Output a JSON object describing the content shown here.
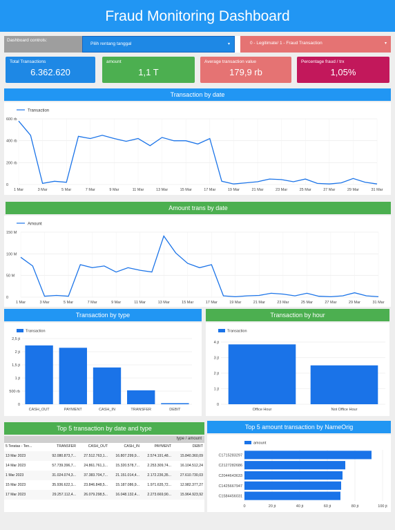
{
  "header": {
    "title": "Fraud Monitoring Dashboard"
  },
  "controls": {
    "label": "Dashboard controls:",
    "date_picker": "Pilih rentang tanggal",
    "fraud_filter": "0 - Legitimate/ 1 - Fraud Transaction",
    "dropdown_arrow": "▾"
  },
  "kpis": [
    {
      "label": "Total Transactions",
      "value": "6.362.620",
      "color": "#1e88e5"
    },
    {
      "label": "amount",
      "value": "1,1 T",
      "color": "#4caf50"
    },
    {
      "label": "Average transaction value",
      "value": "179,9 rb",
      "color": "#e57373"
    },
    {
      "label": "Percentage fraud / trx",
      "value": "1,05%",
      "color": "#c2185b"
    }
  ],
  "sections": {
    "trans_by_date": "Transaction by date",
    "amount_by_date": "Amount trans by date",
    "trans_by_type": "Transaction by type",
    "trans_by_hour": "Transaction by hour",
    "top5_date_type": "Top 5 transaction by date and type",
    "top5_nameorig": "Top 5 amount transaction by NameOrig"
  },
  "colors": {
    "blue": "#2196f3",
    "green": "#4caf50",
    "bar": "#1a73e8",
    "line": "#1a73e8"
  },
  "chart_data": [
    {
      "type": "line",
      "title": "Transaction by date",
      "series": [
        {
          "name": "Transaction",
          "values": [
            580,
            450,
            10,
            30,
            20,
            440,
            420,
            450,
            420,
            395,
            420,
            355,
            430,
            400,
            400,
            370,
            420,
            30,
            5,
            15,
            25,
            50,
            45,
            25,
            50,
            10,
            5,
            15,
            55,
            20,
            5
          ]
        }
      ],
      "x_tick_labels": [
        "1 Mar",
        "3 Mar",
        "5 Mar",
        "7 Mar",
        "9 Mar",
        "11 Mar",
        "13 Mar",
        "15 Mar",
        "17 Mar",
        "19 Mar",
        "21 Mar",
        "23 Mar",
        "25 Mar",
        "27 Mar",
        "29 Mar",
        "31 Mar"
      ],
      "y_ticks": [
        {
          "value": 0,
          "label": "0"
        },
        {
          "value": 200,
          "label": "200 rb"
        },
        {
          "value": 400,
          "label": "400 rb"
        },
        {
          "value": 600,
          "label": "600 rb"
        }
      ],
      "ylim": [
        0,
        600
      ],
      "legend": "top-left"
    },
    {
      "type": "line",
      "title": "Amount trans by date",
      "series": [
        {
          "name": "Amount",
          "values": [
            92,
            72,
            2,
            4,
            2,
            75,
            68,
            72,
            58,
            68,
            62,
            58,
            141,
            102,
            78,
            68,
            75,
            3,
            1,
            3,
            4,
            9,
            7,
            3,
            9,
            2,
            1,
            3,
            10,
            3,
            1
          ]
        }
      ],
      "x_tick_labels": [
        "1 Mar",
        "3 Mar",
        "5 Mar",
        "7 Mar",
        "9 Mar",
        "11 Mar",
        "13 Mar",
        "15 Mar",
        "17 Mar",
        "19 Mar",
        "21 Mar",
        "23 Mar",
        "25 Mar",
        "27 Mar",
        "29 Mar",
        "31 Mar"
      ],
      "y_ticks": [
        {
          "value": 0,
          "label": "0"
        },
        {
          "value": 50,
          "label": "50 M"
        },
        {
          "value": 100,
          "label": "100 M"
        },
        {
          "value": 150,
          "label": "150 M"
        }
      ],
      "ylim": [
        0,
        150
      ],
      "legend": "top-left"
    },
    {
      "type": "bar",
      "title": "Transaction by type",
      "categories": [
        "CASH_OUT",
        "PAYMENT",
        "CASH_IN",
        "TRANSFER",
        "DEBIT"
      ],
      "series": [
        {
          "name": "Transaction",
          "values": [
            2.24,
            2.15,
            1.4,
            0.53,
            0.04
          ]
        }
      ],
      "y_ticks": [
        {
          "value": 0,
          "label": "0"
        },
        {
          "value": 0.5,
          "label": "500 rb"
        },
        {
          "value": 1,
          "label": "1 jt"
        },
        {
          "value": 1.5,
          "label": "1,5 jt"
        },
        {
          "value": 2,
          "label": "2 jt"
        },
        {
          "value": 2.5,
          "label": "2,5 jt"
        }
      ],
      "ylim": [
        0,
        2.5
      ],
      "legend": "top-left"
    },
    {
      "type": "bar",
      "title": "Transaction by hour",
      "categories": [
        "Office Hour",
        "Not Office Hour"
      ],
      "series": [
        {
          "name": "Transaction",
          "values": [
            3.85,
            2.5
          ]
        }
      ],
      "y_ticks": [
        {
          "value": 0,
          "label": "0"
        },
        {
          "value": 1,
          "label": "1 jt"
        },
        {
          "value": 2,
          "label": "2 jt"
        },
        {
          "value": 3,
          "label": "3 jt"
        },
        {
          "value": 4,
          "label": "4 jt"
        }
      ],
      "ylim": [
        0,
        4
      ],
      "legend": "top-left"
    },
    {
      "type": "table",
      "title": "Top 5 transaction by date and type",
      "group_header": "type / amount",
      "columns": [
        "5 Teratas - Ten...",
        "TRANSFER",
        "CASH_OUT",
        "CASH_IN",
        "PAYMENT",
        "DEBIT"
      ],
      "rows": [
        [
          "13 Mar 2023",
          "92.080.873,7...",
          "27.512.763,1...",
          "16.807.299,9...",
          "2.574.191,48...",
          "15.840.360,09"
        ],
        [
          "14 Mar 2023",
          "57.739.396,7...",
          "24.861.761,1...",
          "15.320.578,7...",
          "2.253.309,74...",
          "16.104.512,24"
        ],
        [
          "1 Mar 2023",
          "31.024.074,3...",
          "37.383.704,7...",
          "21.151.014,4...",
          "2.172.236,35...",
          "27.610.730,03"
        ],
        [
          "15 Mar 2023",
          "35.936.622,1...",
          "23.846.848,5...",
          "15.187.086,9...",
          "1.971.635,72...",
          "12.982.377,27"
        ],
        [
          "17 Mar 2023",
          "29.257.112,4...",
          "26.079.298,5...",
          "16.048.132,4...",
          "2.273.669,90...",
          "15.964.923,92"
        ]
      ]
    },
    {
      "type": "bar",
      "title": "Top 5 amount transaction by NameOrig",
      "orientation": "horizontal",
      "categories": [
        "C1715283297",
        "C2127282686",
        "C2044643633",
        "C1425667947",
        "C1584456031"
      ],
      "series": [
        {
          "name": "amount",
          "values": [
            92,
            73,
            71,
            70,
            69.5
          ]
        }
      ],
      "x_ticks": [
        {
          "value": 0,
          "label": "0"
        },
        {
          "value": 20,
          "label": "20 jt"
        },
        {
          "value": 40,
          "label": "40 jt"
        },
        {
          "value": 60,
          "label": "60 jt"
        },
        {
          "value": 80,
          "label": "80 jt"
        },
        {
          "value": 100,
          "label": "100 jt"
        }
      ],
      "xlim": [
        0,
        100
      ],
      "legend": "top-left"
    }
  ]
}
